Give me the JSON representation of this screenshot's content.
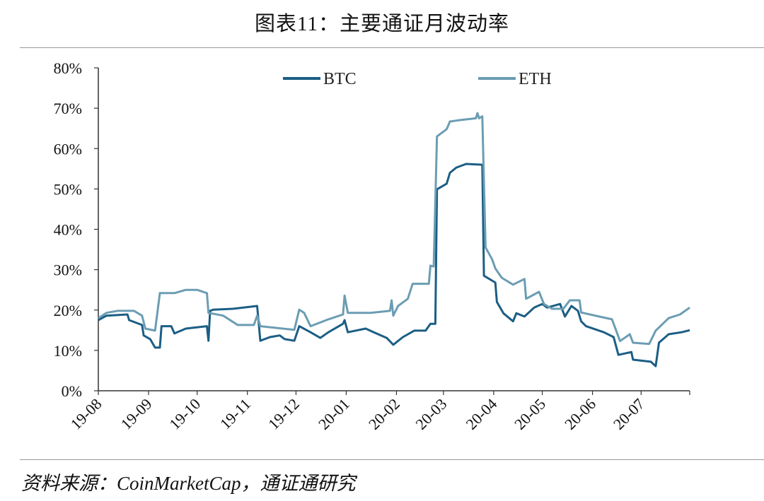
{
  "title": "图表11：主要通证月波动率",
  "source": "资料来源：CoinMarketCap，通证通研究",
  "chart_data": {
    "type": "line",
    "title": "图表11：主要通证月波动率",
    "xlabel": "",
    "ylabel": "",
    "x_type": "date",
    "xlim": [
      "2019-08-01",
      "2020-07-31"
    ],
    "ylim": [
      0,
      80
    ],
    "y_ticks": [
      0,
      10,
      20,
      30,
      40,
      50,
      60,
      70,
      80
    ],
    "y_tick_labels": [
      "0%",
      "10%",
      "20%",
      "30%",
      "40%",
      "50%",
      "60%",
      "70%",
      "80%"
    ],
    "x_ticks": [
      "2019-08-01",
      "2019-09-01",
      "2019-10-01",
      "2019-11-01",
      "2019-12-01",
      "2020-01-01",
      "2020-02-01",
      "2020-03-01",
      "2020-04-01",
      "2020-05-01",
      "2020-06-01",
      "2020-07-01"
    ],
    "x_tick_labels": [
      "19-08",
      "19-09",
      "19-10",
      "19-11",
      "19-12",
      "20-01",
      "20-02",
      "20-03",
      "20-04",
      "20-05",
      "20-06",
      "20-07"
    ],
    "grid": false,
    "legend_placement": "top",
    "series": [
      {
        "name": "BTC",
        "color": "#1b5e85",
        "points": [
          [
            "2019-08-01",
            17.5
          ],
          [
            "2019-08-06",
            18.6
          ],
          [
            "2019-08-19",
            18.9
          ],
          [
            "2019-08-20",
            17.5
          ],
          [
            "2019-08-28",
            16.3
          ],
          [
            "2019-08-29",
            13.7
          ],
          [
            "2019-09-02",
            12.8
          ],
          [
            "2019-09-05",
            10.7
          ],
          [
            "2019-09-08",
            10.7
          ],
          [
            "2019-09-09",
            16
          ],
          [
            "2019-09-15",
            16
          ],
          [
            "2019-09-17",
            14.2
          ],
          [
            "2019-09-24",
            15.4
          ],
          [
            "2019-10-07",
            16
          ],
          [
            "2019-10-08",
            12.4
          ],
          [
            "2019-10-09",
            19.8
          ],
          [
            "2019-10-11",
            20.1
          ],
          [
            "2019-10-23",
            20.3
          ],
          [
            "2019-11-07",
            21
          ],
          [
            "2019-11-09",
            12.4
          ],
          [
            "2019-11-15",
            13.3
          ],
          [
            "2019-11-21",
            13.7
          ],
          [
            "2019-11-24",
            12.8
          ],
          [
            "2019-11-30",
            12.4
          ],
          [
            "2019-12-03",
            16
          ],
          [
            "2019-12-10",
            14.5
          ],
          [
            "2019-12-16",
            13.1
          ],
          [
            "2019-12-21",
            14.5
          ],
          [
            "2019-12-30",
            16.6
          ],
          [
            "2019-12-31",
            17.5
          ],
          [
            "2020-01-02",
            14.5
          ],
          [
            "2020-01-13",
            15.4
          ],
          [
            "2020-01-18",
            14.5
          ],
          [
            "2020-01-26",
            13.1
          ],
          [
            "2020-01-30",
            11.4
          ],
          [
            "2020-02-05",
            13.3
          ],
          [
            "2020-02-12",
            14.9
          ],
          [
            "2020-02-19",
            14.9
          ],
          [
            "2020-02-22",
            16.6
          ],
          [
            "2020-02-25",
            16.6
          ],
          [
            "2020-02-26",
            49.9
          ],
          [
            "2020-03-03",
            51.3
          ],
          [
            "2020-03-05",
            54
          ],
          [
            "2020-03-09",
            55.3
          ],
          [
            "2020-03-15",
            56.2
          ],
          [
            "2020-03-25",
            56
          ],
          [
            "2020-03-26",
            28.5
          ],
          [
            "2020-04-02",
            26.8
          ],
          [
            "2020-04-03",
            22
          ],
          [
            "2020-04-07",
            19.2
          ],
          [
            "2020-04-13",
            17.2
          ],
          [
            "2020-04-15",
            19.2
          ],
          [
            "2020-04-20",
            18.4
          ],
          [
            "2020-04-26",
            20.6
          ],
          [
            "2020-05-01",
            21.5
          ],
          [
            "2020-05-04",
            20.6
          ],
          [
            "2020-05-12",
            21.5
          ],
          [
            "2020-05-15",
            18.4
          ],
          [
            "2020-05-19",
            21
          ],
          [
            "2020-05-23",
            19.8
          ],
          [
            "2020-05-25",
            17.2
          ],
          [
            "2020-05-28",
            16
          ],
          [
            "2020-06-08",
            14.5
          ],
          [
            "2020-06-14",
            13.3
          ],
          [
            "2020-06-17",
            8.9
          ],
          [
            "2020-06-25",
            9.6
          ],
          [
            "2020-06-26",
            7.7
          ],
          [
            "2020-07-07",
            7.2
          ],
          [
            "2020-07-10",
            6.1
          ],
          [
            "2020-07-12",
            11.9
          ],
          [
            "2020-07-18",
            14
          ],
          [
            "2020-07-26",
            14.5
          ],
          [
            "2020-07-31",
            15
          ]
        ]
      },
      {
        "name": "ETH",
        "color": "#6b9db3",
        "points": [
          [
            "2019-08-01",
            18
          ],
          [
            "2019-08-06",
            19.3
          ],
          [
            "2019-08-13",
            19.8
          ],
          [
            "2019-08-23",
            19.8
          ],
          [
            "2019-08-28",
            18.6
          ],
          [
            "2019-08-30",
            15.4
          ],
          [
            "2019-09-05",
            14.9
          ],
          [
            "2019-09-08",
            24.2
          ],
          [
            "2019-09-17",
            24.2
          ],
          [
            "2019-09-24",
            25
          ],
          [
            "2019-10-01",
            25
          ],
          [
            "2019-10-07",
            24.2
          ],
          [
            "2019-10-08",
            19.3
          ],
          [
            "2019-10-17",
            18.6
          ],
          [
            "2019-10-26",
            16.3
          ],
          [
            "2019-11-05",
            16.3
          ],
          [
            "2019-11-07",
            18.6
          ],
          [
            "2019-11-09",
            16
          ],
          [
            "2019-11-30",
            15.1
          ],
          [
            "2019-12-03",
            20.1
          ],
          [
            "2019-12-06",
            19.3
          ],
          [
            "2019-12-10",
            16
          ],
          [
            "2019-12-21",
            17.7
          ],
          [
            "2019-12-30",
            18.9
          ],
          [
            "2019-12-31",
            23.6
          ],
          [
            "2020-01-02",
            19.3
          ],
          [
            "2020-01-16",
            19.3
          ],
          [
            "2020-01-28",
            19.8
          ],
          [
            "2020-01-29",
            22.4
          ],
          [
            "2020-01-30",
            18.6
          ],
          [
            "2020-02-02",
            21
          ],
          [
            "2020-02-08",
            22.8
          ],
          [
            "2020-02-11",
            26.5
          ],
          [
            "2020-02-21",
            26.5
          ],
          [
            "2020-02-22",
            31
          ],
          [
            "2020-02-24",
            30.8
          ],
          [
            "2020-02-26",
            63
          ],
          [
            "2020-03-03",
            64.8
          ],
          [
            "2020-03-05",
            66.7
          ],
          [
            "2020-03-10",
            67
          ],
          [
            "2020-03-21",
            67.5
          ],
          [
            "2020-03-22",
            68.8
          ],
          [
            "2020-03-23",
            67.5
          ],
          [
            "2020-03-25",
            68
          ],
          [
            "2020-03-27",
            35.5
          ],
          [
            "2020-03-31",
            32.6
          ],
          [
            "2020-04-02",
            30.3
          ],
          [
            "2020-04-06",
            28
          ],
          [
            "2020-04-13",
            26.3
          ],
          [
            "2020-04-20",
            27.7
          ],
          [
            "2020-04-21",
            22.8
          ],
          [
            "2020-04-29",
            24.5
          ],
          [
            "2020-05-02",
            21.5
          ],
          [
            "2020-05-07",
            20.3
          ],
          [
            "2020-05-14",
            20.3
          ],
          [
            "2020-05-18",
            22.4
          ],
          [
            "2020-05-24",
            22.4
          ],
          [
            "2020-05-25",
            19.4
          ],
          [
            "2020-06-05",
            18.4
          ],
          [
            "2020-06-13",
            17.7
          ],
          [
            "2020-06-18",
            12.3
          ],
          [
            "2020-06-24",
            14
          ],
          [
            "2020-06-26",
            11.9
          ],
          [
            "2020-07-06",
            11.6
          ],
          [
            "2020-07-10",
            14.9
          ],
          [
            "2020-07-18",
            18
          ],
          [
            "2020-07-25",
            18.9
          ],
          [
            "2020-07-31",
            20.6
          ]
        ]
      }
    ]
  }
}
